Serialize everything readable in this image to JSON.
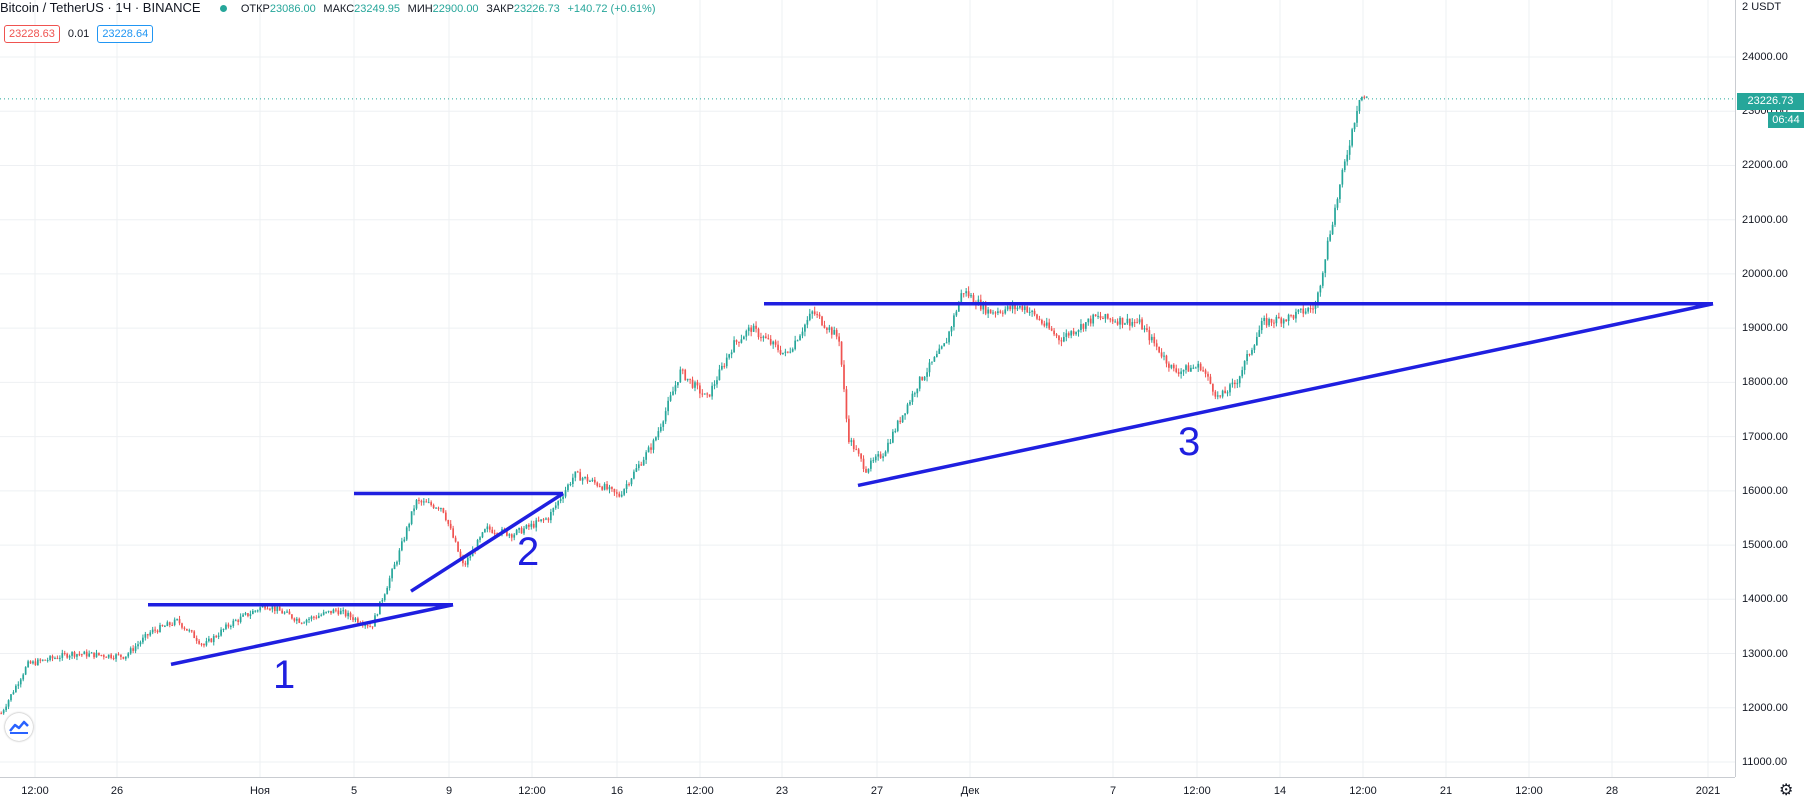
{
  "legend": {
    "title": "Bitcoin / TetherUS · 1Ч · BINANCE",
    "open_label": "ОТКР",
    "open_value": "23086.00",
    "high_label": "МАКС",
    "high_value": "23249.95",
    "low_label": "МИН",
    "low_value": "22900.00",
    "close_label": "ЗАКР",
    "close_value": "23226.73",
    "change_value": "+140.72 (+0.61%)",
    "status_color": "#26a69a"
  },
  "bid_ask": {
    "sell": "23228.63",
    "spread": "0.01",
    "buy": "23228.64"
  },
  "price_axis": {
    "currency": "USDT",
    "ticks": [
      "24000.00",
      "23000.00",
      "22000.00",
      "21000.00",
      "20000.00",
      "19000.00",
      "18000.00",
      "17000.00",
      "16000.00",
      "15000.00",
      "14000.00",
      "13000.00",
      "12000.00",
      "11000.00"
    ],
    "current_price": "23226.73",
    "countdown": "06:44",
    "colors": {
      "up": "#26a69a",
      "down": "#ef5350",
      "drawing": "#1f1fe0"
    }
  },
  "time_axis": {
    "ticks": [
      "12:00",
      "26",
      "Ноя",
      "5",
      "9",
      "12:00",
      "16",
      "12:00",
      "23",
      "27",
      "Дек",
      "7",
      "12:00",
      "14",
      "12:00",
      "21",
      "12:00",
      "28",
      "2021"
    ]
  },
  "chart_data": {
    "type": "candlestick",
    "symbol": "Bitcoin / TetherUS",
    "interval": "1Ч",
    "exchange": "BINANCE",
    "ylim": [
      10800,
      24400
    ],
    "grid": true,
    "price_path": [
      [
        0,
        11900
      ],
      [
        0.015,
        12800
      ],
      [
        0.04,
        13000
      ],
      [
        0.07,
        12950
      ],
      [
        0.085,
        13400
      ],
      [
        0.1,
        13600
      ],
      [
        0.115,
        13150
      ],
      [
        0.13,
        13550
      ],
      [
        0.15,
        13900
      ],
      [
        0.17,
        13600
      ],
      [
        0.19,
        13800
      ],
      [
        0.21,
        13500
      ],
      [
        0.225,
        14800
      ],
      [
        0.235,
        15800
      ],
      [
        0.25,
        15700
      ],
      [
        0.262,
        14600
      ],
      [
        0.275,
        15300
      ],
      [
        0.29,
        15200
      ],
      [
        0.31,
        15500
      ],
      [
        0.325,
        16300
      ],
      [
        0.34,
        16100
      ],
      [
        0.35,
        15900
      ],
      [
        0.37,
        16900
      ],
      [
        0.385,
        18200
      ],
      [
        0.4,
        17700
      ],
      [
        0.415,
        18700
      ],
      [
        0.425,
        19000
      ],
      [
        0.445,
        18500
      ],
      [
        0.46,
        19300
      ],
      [
        0.475,
        18800
      ],
      [
        0.48,
        17000
      ],
      [
        0.49,
        16400
      ],
      [
        0.5,
        16700
      ],
      [
        0.52,
        18000
      ],
      [
        0.535,
        18700
      ],
      [
        0.545,
        19700
      ],
      [
        0.56,
        19300
      ],
      [
        0.58,
        19400
      ],
      [
        0.6,
        18800
      ],
      [
        0.62,
        19200
      ],
      [
        0.645,
        19100
      ],
      [
        0.665,
        18200
      ],
      [
        0.68,
        18300
      ],
      [
        0.69,
        17700
      ],
      [
        0.7,
        18000
      ],
      [
        0.715,
        19100
      ],
      [
        0.73,
        19200
      ],
      [
        0.745,
        19400
      ],
      [
        0.752,
        20600
      ],
      [
        0.76,
        21800
      ],
      [
        0.77,
        23300
      ],
      [
        0.774,
        23226
      ]
    ],
    "annotations": [
      {
        "label": "1",
        "type": "ascending-triangle",
        "resistance": 13900,
        "support_from": 12800,
        "support_to": 13900
      },
      {
        "label": "2",
        "type": "ascending-triangle",
        "resistance": 15950,
        "support_from": 14150,
        "support_to": 15950
      },
      {
        "label": "3",
        "type": "ascending-triangle",
        "resistance": 19450,
        "support_from": 16100,
        "support_to": 19450
      }
    ]
  }
}
